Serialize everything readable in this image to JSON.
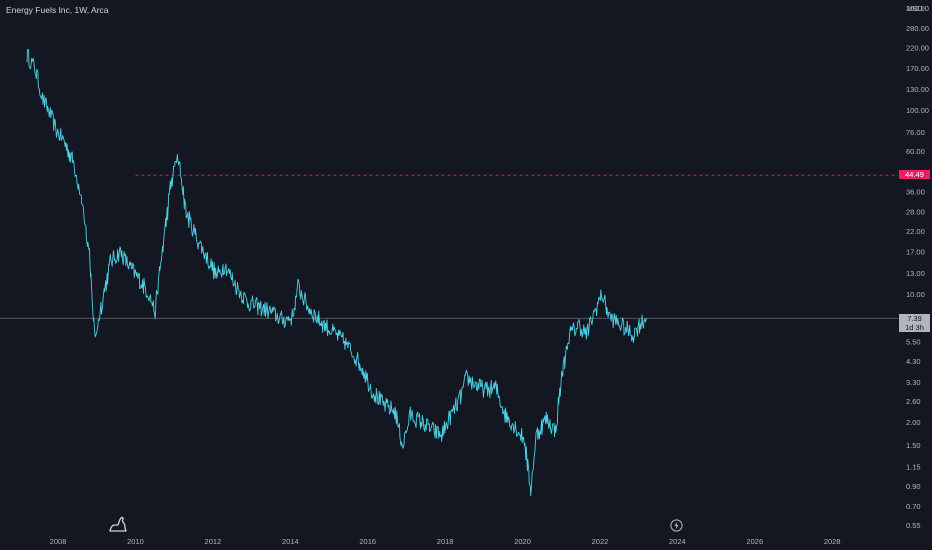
{
  "header": {
    "title": "Energy Fuels Inc, 1W, Arca"
  },
  "axis": {
    "currency": "USD"
  },
  "chart_data": {
    "type": "line",
    "scale": "log",
    "ylim": [
      0.52,
      400
    ],
    "xlim": [
      2006.5,
      2029.7
    ],
    "y_ticks": [
      {
        "value": 360,
        "label": "360.00"
      },
      {
        "value": 280,
        "label": "280.00"
      },
      {
        "value": 220,
        "label": "220.00"
      },
      {
        "value": 170,
        "label": "170.00"
      },
      {
        "value": 130,
        "label": "130.00"
      },
      {
        "value": 100,
        "label": "100.00"
      },
      {
        "value": 76,
        "label": "76.00"
      },
      {
        "value": 60,
        "label": "60.00"
      },
      {
        "value": 36,
        "label": "36.00"
      },
      {
        "value": 28,
        "label": "28.00"
      },
      {
        "value": 22,
        "label": "22.00"
      },
      {
        "value": 17,
        "label": "17.00"
      },
      {
        "value": 13,
        "label": "13.00"
      },
      {
        "value": 10,
        "label": "10.00"
      },
      {
        "value": 5.5,
        "label": "5.50"
      },
      {
        "value": 4.3,
        "label": "4.30"
      },
      {
        "value": 3.3,
        "label": "3.30"
      },
      {
        "value": 2.6,
        "label": "2.60"
      },
      {
        "value": 2.0,
        "label": "2.00"
      },
      {
        "value": 1.5,
        "label": "1.50"
      },
      {
        "value": 1.15,
        "label": "1.15"
      },
      {
        "value": 0.9,
        "label": "0.90"
      },
      {
        "value": 0.7,
        "label": "0.70"
      },
      {
        "value": 0.55,
        "label": "0.55"
      }
    ],
    "x_ticks": [
      {
        "value": 2008,
        "label": "2008"
      },
      {
        "value": 2010,
        "label": "2010"
      },
      {
        "value": 2012,
        "label": "2012"
      },
      {
        "value": 2014,
        "label": "2014"
      },
      {
        "value": 2016,
        "label": "2016"
      },
      {
        "value": 2018,
        "label": "2018"
      },
      {
        "value": 2020,
        "label": "2020"
      },
      {
        "value": 2022,
        "label": "2022"
      },
      {
        "value": 2024,
        "label": "2024"
      },
      {
        "value": 2026,
        "label": "2026"
      },
      {
        "value": 2028,
        "label": "2028"
      }
    ],
    "series": [
      {
        "color": "#4dd0e1",
        "points": [
          [
            2007.2,
            200
          ],
          [
            2007.4,
            170
          ],
          [
            2007.6,
            115
          ],
          [
            2007.8,
            95
          ],
          [
            2007.95,
            78
          ],
          [
            2008.15,
            68
          ],
          [
            2008.4,
            52
          ],
          [
            2008.6,
            34
          ],
          [
            2008.8,
            16
          ],
          [
            2008.95,
            5.8
          ],
          [
            2009.15,
            9.5
          ],
          [
            2009.35,
            15
          ],
          [
            2009.6,
            17
          ],
          [
            2009.85,
            14
          ],
          [
            2010.1,
            12
          ],
          [
            2010.35,
            10
          ],
          [
            2010.5,
            8
          ],
          [
            2010.7,
            18
          ],
          [
            2010.9,
            38
          ],
          [
            2011.05,
            55
          ],
          [
            2011.15,
            48
          ],
          [
            2011.3,
            28
          ],
          [
            2011.5,
            22
          ],
          [
            2011.7,
            18
          ],
          [
            2011.9,
            15
          ],
          [
            2012.1,
            12.5
          ],
          [
            2012.3,
            14.5
          ],
          [
            2012.6,
            11
          ],
          [
            2012.9,
            9
          ],
          [
            2013.2,
            8.5
          ],
          [
            2013.5,
            8
          ],
          [
            2013.8,
            7.2
          ],
          [
            2014.05,
            7.5
          ],
          [
            2014.2,
            11
          ],
          [
            2014.45,
            8.5
          ],
          [
            2014.8,
            7
          ],
          [
            2015.1,
            6.2
          ],
          [
            2015.4,
            5.5
          ],
          [
            2015.7,
            4.5
          ],
          [
            2015.9,
            3.8
          ],
          [
            2016.1,
            3.0
          ],
          [
            2016.4,
            2.5
          ],
          [
            2016.7,
            2.3
          ],
          [
            2016.9,
            1.5
          ],
          [
            2017.1,
            2.2
          ],
          [
            2017.4,
            2.0
          ],
          [
            2017.7,
            1.8
          ],
          [
            2017.9,
            1.7
          ],
          [
            2018.1,
            2.1
          ],
          [
            2018.35,
            2.6
          ],
          [
            2018.55,
            3.5
          ],
          [
            2018.8,
            3.2
          ],
          [
            2019.05,
            3.0
          ],
          [
            2019.3,
            3.1
          ],
          [
            2019.55,
            2.2
          ],
          [
            2019.8,
            1.9
          ],
          [
            2020.05,
            1.6
          ],
          [
            2020.2,
            0.85
          ],
          [
            2020.35,
            1.7
          ],
          [
            2020.6,
            2.1
          ],
          [
            2020.85,
            1.8
          ],
          [
            2021.0,
            3.5
          ],
          [
            2021.2,
            6.0
          ],
          [
            2021.45,
            6.8
          ],
          [
            2021.65,
            6.0
          ],
          [
            2021.9,
            8.5
          ],
          [
            2022.05,
            10.0
          ],
          [
            2022.25,
            7.5
          ],
          [
            2022.45,
            7.0
          ],
          [
            2022.65,
            6.5
          ],
          [
            2022.85,
            6.0
          ],
          [
            2023.05,
            7.0
          ],
          [
            2023.2,
            7.39
          ]
        ]
      }
    ],
    "horizontal_lines": [
      {
        "value": 44.49,
        "label": "44.49",
        "style": "dashed",
        "color": "#e91e63",
        "from_x": 2010.0
      },
      {
        "value": 7.39,
        "label": "7.39",
        "sublabel": "1d 3h",
        "style": "solid",
        "color": "#5d606b"
      }
    ]
  }
}
